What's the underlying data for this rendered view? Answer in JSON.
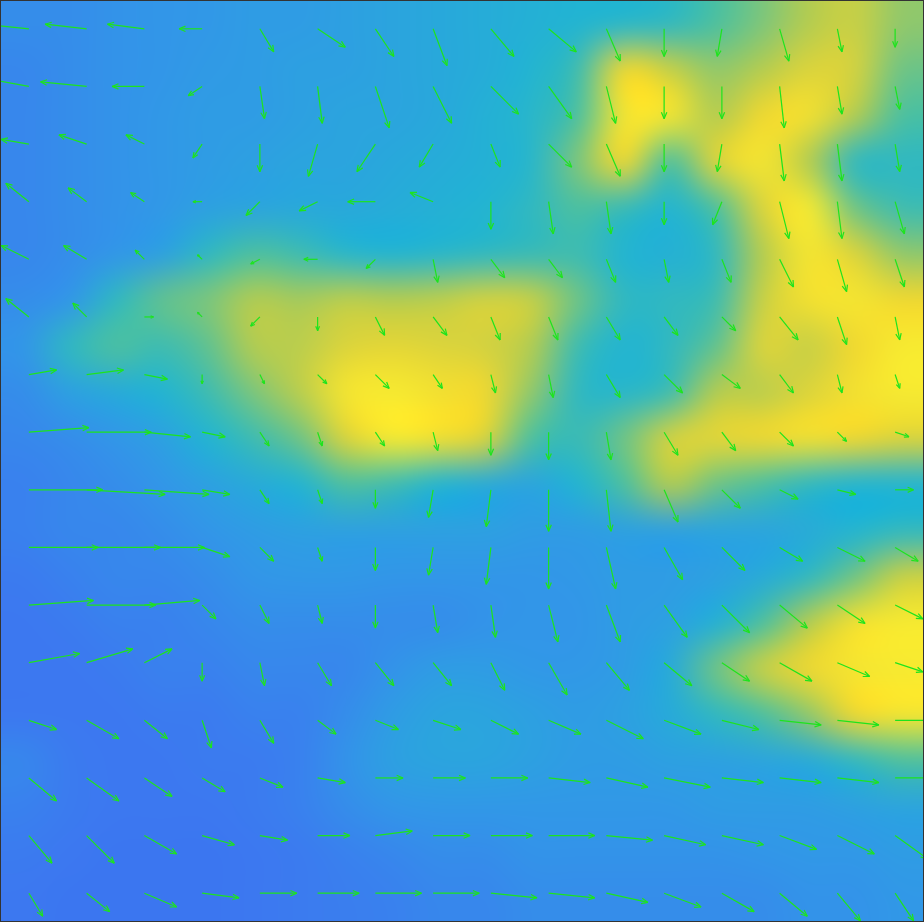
{
  "chart_data": {
    "type": "quiver",
    "xlim": [
      0,
      20
    ],
    "ylim": [
      0,
      20
    ],
    "tick_labels": false,
    "grid": false,
    "color": "#1de41d",
    "color_range": [
      0,
      1
    ],
    "cells": [
      [
        0.22,
        0.22,
        0.24,
        0.25,
        0.26,
        0.28,
        0.28,
        0.3,
        0.32,
        0.34,
        0.36,
        0.38,
        0.4,
        0.42,
        0.45,
        0.55,
        0.62,
        0.7,
        0.75,
        0.65
      ],
      [
        0.2,
        0.22,
        0.24,
        0.25,
        0.27,
        0.28,
        0.3,
        0.3,
        0.32,
        0.34,
        0.36,
        0.4,
        0.5,
        0.85,
        0.75,
        0.65,
        0.7,
        0.8,
        0.78,
        0.6
      ],
      [
        0.2,
        0.22,
        0.24,
        0.26,
        0.28,
        0.28,
        0.3,
        0.32,
        0.32,
        0.34,
        0.38,
        0.42,
        0.55,
        0.9,
        0.9,
        0.7,
        0.85,
        0.88,
        0.7,
        0.55
      ],
      [
        0.2,
        0.22,
        0.24,
        0.26,
        0.28,
        0.3,
        0.32,
        0.32,
        0.34,
        0.36,
        0.38,
        0.42,
        0.62,
        0.85,
        0.55,
        0.8,
        0.9,
        0.7,
        0.45,
        0.45
      ],
      [
        0.2,
        0.22,
        0.24,
        0.26,
        0.3,
        0.32,
        0.34,
        0.34,
        0.36,
        0.38,
        0.4,
        0.45,
        0.55,
        0.48,
        0.4,
        0.55,
        0.8,
        0.92,
        0.6,
        0.5
      ],
      [
        0.2,
        0.22,
        0.25,
        0.3,
        0.45,
        0.55,
        0.5,
        0.42,
        0.4,
        0.42,
        0.45,
        0.48,
        0.5,
        0.4,
        0.38,
        0.45,
        0.7,
        0.9,
        0.8,
        0.65
      ],
      [
        0.22,
        0.25,
        0.45,
        0.58,
        0.62,
        0.7,
        0.68,
        0.72,
        0.7,
        0.72,
        0.78,
        0.75,
        0.6,
        0.45,
        0.45,
        0.5,
        0.75,
        0.88,
        0.9,
        0.85
      ],
      [
        0.25,
        0.45,
        0.55,
        0.5,
        0.58,
        0.7,
        0.72,
        0.8,
        0.82,
        0.8,
        0.78,
        0.7,
        0.5,
        0.4,
        0.45,
        0.58,
        0.8,
        0.75,
        0.85,
        0.92
      ],
      [
        0.22,
        0.3,
        0.35,
        0.4,
        0.5,
        0.62,
        0.72,
        0.9,
        0.92,
        0.88,
        0.85,
        0.65,
        0.45,
        0.42,
        0.5,
        0.7,
        0.72,
        0.8,
        0.88,
        0.92
      ],
      [
        0.2,
        0.22,
        0.25,
        0.3,
        0.4,
        0.5,
        0.6,
        0.8,
        0.92,
        0.88,
        0.8,
        0.55,
        0.48,
        0.6,
        0.78,
        0.82,
        0.85,
        0.88,
        0.85,
        0.8
      ],
      [
        0.18,
        0.2,
        0.22,
        0.25,
        0.3,
        0.35,
        0.4,
        0.55,
        0.5,
        0.4,
        0.35,
        0.32,
        0.4,
        0.55,
        0.7,
        0.6,
        0.55,
        0.45,
        0.4,
        0.4
      ],
      [
        0.18,
        0.2,
        0.2,
        0.22,
        0.25,
        0.28,
        0.3,
        0.3,
        0.3,
        0.3,
        0.3,
        0.28,
        0.28,
        0.3,
        0.3,
        0.32,
        0.32,
        0.35,
        0.4,
        0.45
      ],
      [
        0.16,
        0.18,
        0.2,
        0.2,
        0.22,
        0.25,
        0.26,
        0.26,
        0.25,
        0.25,
        0.25,
        0.25,
        0.26,
        0.28,
        0.28,
        0.3,
        0.35,
        0.45,
        0.6,
        0.75
      ],
      [
        0.15,
        0.16,
        0.18,
        0.18,
        0.2,
        0.22,
        0.22,
        0.22,
        0.22,
        0.22,
        0.24,
        0.25,
        0.25,
        0.28,
        0.3,
        0.38,
        0.55,
        0.7,
        0.88,
        0.92
      ],
      [
        0.15,
        0.15,
        0.16,
        0.18,
        0.18,
        0.2,
        0.2,
        0.2,
        0.24,
        0.28,
        0.28,
        0.26,
        0.26,
        0.28,
        0.35,
        0.6,
        0.75,
        0.85,
        0.9,
        0.92
      ],
      [
        0.15,
        0.15,
        0.15,
        0.16,
        0.16,
        0.18,
        0.18,
        0.22,
        0.28,
        0.32,
        0.32,
        0.3,
        0.28,
        0.3,
        0.35,
        0.45,
        0.55,
        0.65,
        0.85,
        0.9
      ],
      [
        0.2,
        0.16,
        0.15,
        0.15,
        0.16,
        0.16,
        0.18,
        0.24,
        0.3,
        0.32,
        0.32,
        0.3,
        0.28,
        0.28,
        0.3,
        0.3,
        0.32,
        0.35,
        0.45,
        0.55
      ],
      [
        0.18,
        0.16,
        0.15,
        0.15,
        0.15,
        0.16,
        0.18,
        0.22,
        0.25,
        0.26,
        0.26,
        0.26,
        0.26,
        0.26,
        0.26,
        0.28,
        0.28,
        0.28,
        0.3,
        0.32
      ],
      [
        0.16,
        0.15,
        0.14,
        0.14,
        0.14,
        0.15,
        0.16,
        0.18,
        0.2,
        0.22,
        0.22,
        0.24,
        0.24,
        0.24,
        0.24,
        0.24,
        0.25,
        0.26,
        0.26,
        0.28
      ],
      [
        0.15,
        0.14,
        0.14,
        0.14,
        0.14,
        0.15,
        0.16,
        0.17,
        0.18,
        0.2,
        0.2,
        0.22,
        0.22,
        0.22,
        0.22,
        0.22,
        0.22,
        0.24,
        0.24,
        0.26
      ]
    ],
    "vectors": {
      "x": [
        0.625,
        1.875,
        3.125,
        4.375,
        5.625,
        6.875,
        8.125,
        9.375,
        10.625,
        11.875,
        13.125,
        14.375,
        15.625,
        16.875,
        18.125,
        19.375
      ],
      "y": [
        19.375,
        18.125,
        16.875,
        15.625,
        14.375,
        13.125,
        11.875,
        10.625,
        9.375,
        8.125,
        6.875,
        5.625,
        4.375,
        3.125,
        1.875,
        0.625
      ],
      "u": [
        [
          -1.0,
          -0.9,
          -0.8,
          -0.5,
          0.3,
          0.6,
          0.4,
          0.3,
          0.5,
          0.6,
          0.3,
          0.0,
          -0.1,
          0.2,
          0.1,
          0.0
        ],
        [
          -1.1,
          -1.0,
          -0.7,
          -0.3,
          0.1,
          0.1,
          0.3,
          0.4,
          0.6,
          0.5,
          0.2,
          0.0,
          0.0,
          0.1,
          0.1,
          0.1
        ],
        [
          -0.6,
          -0.6,
          -0.4,
          -0.2,
          0.0,
          -0.2,
          -0.4,
          -0.3,
          0.2,
          0.5,
          0.3,
          0.0,
          -0.1,
          0.1,
          0.1,
          0.1
        ],
        [
          -0.5,
          -0.4,
          -0.3,
          -0.2,
          -0.3,
          -0.4,
          -0.6,
          -0.5,
          0.0,
          0.1,
          0.1,
          0.0,
          -0.2,
          0.2,
          0.1,
          0.2
        ],
        [
          -0.6,
          -0.5,
          -0.2,
          -0.1,
          -0.2,
          -0.3,
          -0.2,
          0.1,
          0.3,
          0.3,
          0.2,
          0.1,
          0.2,
          0.3,
          0.2,
          0.2
        ],
        [
          -0.5,
          -0.3,
          0.2,
          -0.1,
          -0.2,
          0.0,
          0.2,
          0.3,
          0.2,
          0.2,
          0.3,
          0.3,
          0.3,
          0.4,
          0.2,
          0.1
        ],
        [
          0.6,
          0.8,
          0.5,
          0.0,
          0.1,
          0.2,
          0.3,
          0.2,
          0.1,
          0.1,
          0.3,
          0.4,
          0.4,
          0.3,
          0.1,
          0.1
        ],
        [
          1.3,
          1.4,
          1.0,
          0.5,
          0.2,
          0.1,
          0.2,
          0.1,
          0.0,
          0.0,
          0.1,
          0.3,
          0.3,
          0.3,
          0.2,
          0.3
        ],
        [
          1.6,
          1.7,
          1.4,
          0.6,
          0.2,
          0.1,
          0.0,
          -0.1,
          -0.1,
          0.0,
          0.1,
          0.3,
          0.4,
          0.4,
          0.4,
          0.4
        ],
        [
          1.5,
          1.6,
          1.3,
          0.6,
          0.3,
          0.1,
          0.0,
          -0.1,
          -0.1,
          0.0,
          0.2,
          0.4,
          0.5,
          0.5,
          0.6,
          0.5
        ],
        [
          1.4,
          1.5,
          1.2,
          0.3,
          0.2,
          0.1,
          0.0,
          0.1,
          0.1,
          0.2,
          0.3,
          0.5,
          0.6,
          0.6,
          0.6,
          0.6
        ],
        [
          1.1,
          1.0,
          0.6,
          0.0,
          0.1,
          0.3,
          0.4,
          0.4,
          0.3,
          0.4,
          0.5,
          0.6,
          0.6,
          0.7,
          0.7,
          0.6
        ],
        [
          0.6,
          0.7,
          0.5,
          0.2,
          0.3,
          0.4,
          0.5,
          0.6,
          0.6,
          0.7,
          0.8,
          0.8,
          0.8,
          0.9,
          0.9,
          0.8
        ],
        [
          0.6,
          0.7,
          0.6,
          0.5,
          0.5,
          0.6,
          0.6,
          0.7,
          0.8,
          0.9,
          0.9,
          1.0,
          0.9,
          0.9,
          0.9,
          0.8
        ],
        [
          0.5,
          0.6,
          0.7,
          0.7,
          0.6,
          0.7,
          0.8,
          0.8,
          0.9,
          1.0,
          1.0,
          0.9,
          0.9,
          0.8,
          0.8,
          0.7
        ],
        [
          0.3,
          0.5,
          0.7,
          0.8,
          0.8,
          0.9,
          1.0,
          1.0,
          1.0,
          1.0,
          0.9,
          0.8,
          0.7,
          0.6,
          0.5,
          0.4
        ]
      ],
      "v": [
        [
          0.1,
          0.1,
          0.1,
          0.0,
          -0.5,
          -0.4,
          -0.6,
          -0.8,
          -0.6,
          -0.5,
          -0.7,
          -0.6,
          -0.6,
          -0.7,
          -0.5,
          -0.4
        ],
        [
          0.2,
          0.1,
          0.0,
          -0.2,
          -0.7,
          -0.8,
          -0.9,
          -0.8,
          -0.6,
          -0.7,
          -0.8,
          -0.7,
          -0.7,
          -0.9,
          -0.6,
          -0.5
        ],
        [
          0.1,
          0.2,
          0.2,
          -0.3,
          -0.6,
          -0.7,
          -0.6,
          -0.5,
          -0.5,
          -0.5,
          -0.7,
          -0.6,
          -0.6,
          -0.8,
          -0.8,
          -0.6
        ],
        [
          0.4,
          0.3,
          0.2,
          0.0,
          -0.3,
          -0.2,
          0.0,
          0.2,
          -0.6,
          -0.7,
          -0.7,
          -0.5,
          -0.5,
          -0.8,
          -0.8,
          -0.7
        ],
        [
          0.3,
          0.3,
          0.2,
          0.1,
          -0.1,
          0.0,
          -0.2,
          -0.5,
          -0.4,
          -0.4,
          -0.5,
          -0.5,
          -0.5,
          -0.6,
          -0.7,
          -0.6
        ],
        [
          0.4,
          0.3,
          0.0,
          0.1,
          -0.2,
          -0.3,
          -0.4,
          -0.4,
          -0.5,
          -0.5,
          -0.5,
          -0.4,
          -0.3,
          -0.5,
          -0.6,
          -0.5
        ],
        [
          0.1,
          0.1,
          -0.1,
          -0.2,
          -0.2,
          -0.2,
          -0.3,
          -0.3,
          -0.4,
          -0.5,
          -0.5,
          -0.4,
          -0.3,
          -0.4,
          -0.4,
          -0.3
        ],
        [
          0.1,
          0.0,
          -0.1,
          -0.1,
          -0.3,
          -0.3,
          -0.3,
          -0.4,
          -0.5,
          -0.6,
          -0.6,
          -0.5,
          -0.4,
          -0.3,
          -0.2,
          -0.1
        ],
        [
          0.0,
          -0.1,
          -0.1,
          -0.1,
          -0.3,
          -0.3,
          -0.4,
          -0.6,
          -0.8,
          -0.9,
          -0.9,
          -0.7,
          -0.4,
          -0.2,
          -0.1,
          0.0
        ],
        [
          0.0,
          0.0,
          0.0,
          -0.2,
          -0.3,
          -0.3,
          -0.5,
          -0.6,
          -0.8,
          -0.9,
          -0.9,
          -0.7,
          -0.5,
          -0.3,
          -0.3,
          -0.3
        ],
        [
          0.1,
          0.0,
          0.1,
          -0.3,
          -0.4,
          -0.4,
          -0.5,
          -0.6,
          -0.7,
          -0.8,
          -0.8,
          -0.7,
          -0.6,
          -0.5,
          -0.4,
          -0.3
        ],
        [
          0.2,
          0.3,
          0.3,
          -0.4,
          -0.5,
          -0.5,
          -0.5,
          -0.5,
          -0.6,
          -0.7,
          -0.6,
          -0.5,
          -0.4,
          -0.4,
          -0.3,
          -0.2
        ],
        [
          -0.2,
          -0.4,
          -0.4,
          -0.6,
          -0.5,
          -0.3,
          -0.2,
          -0.2,
          -0.3,
          -0.3,
          -0.4,
          -0.3,
          -0.2,
          -0.1,
          -0.1,
          0.0
        ],
        [
          -0.5,
          -0.5,
          -0.4,
          -0.3,
          -0.2,
          -0.1,
          0.0,
          0.0,
          0.0,
          -0.1,
          -0.2,
          -0.2,
          -0.1,
          -0.1,
          -0.1,
          0.0
        ],
        [
          -0.6,
          -0.6,
          -0.4,
          -0.2,
          -0.1,
          0.0,
          0.1,
          0.0,
          0.0,
          0.0,
          -0.1,
          -0.2,
          -0.2,
          -0.3,
          -0.4,
          -0.5
        ],
        [
          -0.5,
          -0.4,
          -0.3,
          -0.1,
          0.0,
          0.0,
          0.0,
          0.0,
          -0.1,
          -0.1,
          -0.2,
          -0.3,
          -0.4,
          -0.5,
          -0.6,
          -0.6
        ]
      ]
    }
  }
}
